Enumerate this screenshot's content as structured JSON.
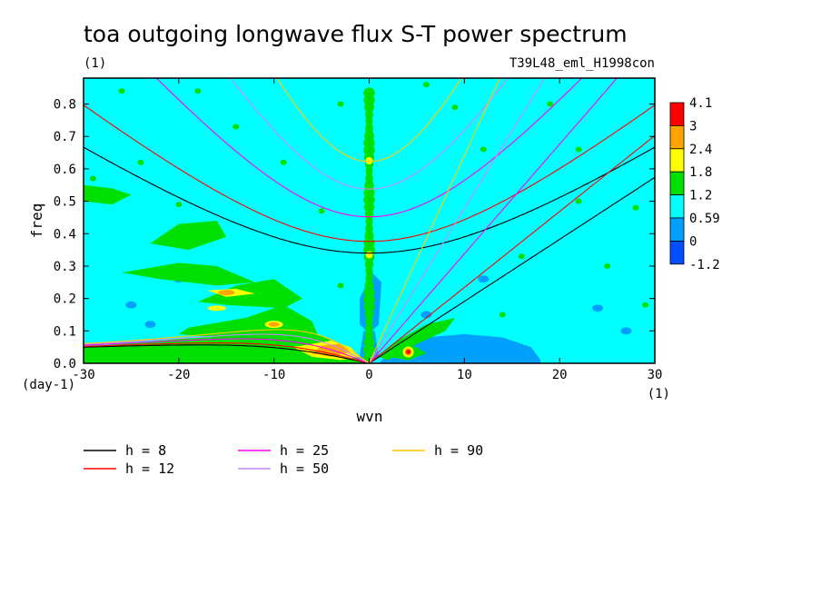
{
  "chart_data": {
    "type": "heatmap",
    "title": "toa outgoing longwave flux S-T power spectrum",
    "title_unit": "(1)",
    "run_name": "T39L48_eml_H1998con",
    "xlabel": "wvn",
    "xunit": "(1)",
    "ylabel": "freq",
    "yunit": "(day-1)",
    "xlim": [
      -30,
      30
    ],
    "ylim": [
      0,
      0.88
    ],
    "xticks": [
      "-30",
      "-20",
      "-10",
      "0",
      "10",
      "20",
      "30"
    ],
    "yticks": [
      "0.0",
      "0.1",
      "0.2",
      "0.3",
      "0.4",
      "0.5",
      "0.6",
      "0.7",
      "0.8"
    ],
    "colorbar": {
      "levels": [
        "4.1",
        "3",
        "2.4",
        "1.8",
        "1.2",
        "0.59",
        "0",
        "-1.2"
      ],
      "colors": [
        "#ff0000",
        "#ffa500",
        "#ffff00",
        "#00e000",
        "#00ffff",
        "#00a0ff",
        "#0050ff"
      ]
    },
    "background_level": "0.59 to 1.2",
    "features": [
      {
        "type": "ridge",
        "x": 0,
        "y_range": [
          0,
          0.85
        ],
        "level": "1.2 to 1.8"
      },
      {
        "type": "peak",
        "x": 4,
        "y": 0.035,
        "level": "3 to 4.1"
      },
      {
        "type": "band",
        "x_range": [
          -6,
          -2
        ],
        "y_range": [
          0.03,
          0.07
        ],
        "level": "2.4 to 3"
      },
      {
        "type": "band",
        "x_range": [
          -17,
          -12
        ],
        "y_range": [
          0.21,
          0.23
        ],
        "level": "2.4 to 3"
      }
    ],
    "series": [
      {
        "name": "h =  8",
        "color": "#000000",
        "equivalent_depth_m": 8
      },
      {
        "name": "h = 12",
        "color": "#ff0000",
        "equivalent_depth_m": 12
      },
      {
        "name": "h = 25",
        "color": "#ff00ff",
        "equivalent_depth_m": 25
      },
      {
        "name": "h = 50",
        "color": "#cc88ff",
        "equivalent_depth_m": 50
      },
      {
        "name": "h = 90",
        "color": "#ffcc00",
        "equivalent_depth_m": 90
      }
    ],
    "dispersion_curves": {
      "equatorial_rossby_n1": {
        "x": [
          -30,
          -20,
          -10,
          -5,
          -2,
          0
        ],
        "description": "low-frequency westward curves"
      },
      "inertia_gravity_n1": {
        "y_at_x0": {
          "8": 0.335,
          "12": 0.37,
          "25": 0.44,
          "50": 0.53,
          "90": 0.615
        }
      },
      "kelvin": {
        "y_at_x30": {
          "8": 0.57,
          "12": 0.7
        }
      }
    }
  }
}
